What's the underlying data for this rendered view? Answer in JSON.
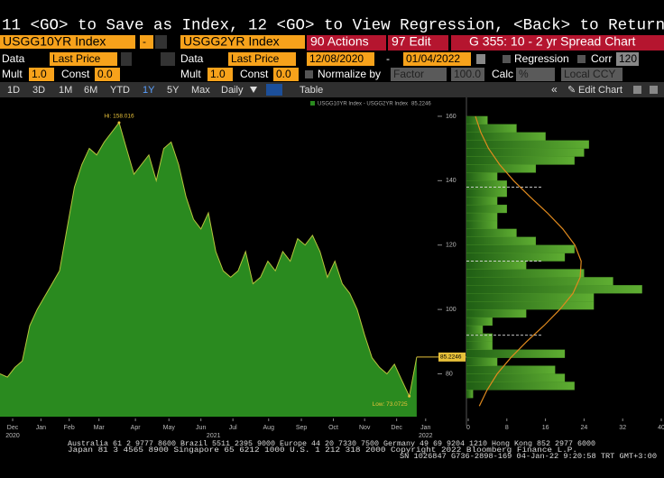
{
  "header": {
    "command": "11 <GO> to Save as Index, 12 <GO> to View Regression, <Back> to Return",
    "security1": "USGG10YR Index",
    "operator": "-",
    "security2": "USGG2YR Index",
    "actions": "90 Actions",
    "edit": "97 Edit",
    "chart_name": "G 355: 10 - 2 yr Spread Chart"
  },
  "row_data": {
    "data1": "Data",
    "price1": "Last Price",
    "data2": "Data",
    "price2": "Last Price",
    "start": "12/08/2020",
    "dash": "-",
    "end": "01/04/2022",
    "regression": "Regression",
    "corr": "Corr",
    "corr_value": "120"
  },
  "row_mult": {
    "mult1": "Mult",
    "mult1_value": "1.0",
    "const1": "Const",
    "const1_value": "0.0",
    "mult2": "Mult",
    "mult2_value": "1.0",
    "const2": "Const",
    "const2_value": "0.0",
    "normalize": "Normalize by",
    "factor": "Factor",
    "factor_value": "100.0",
    "calc": "Calc",
    "calc_value": "%",
    "ccy": "Local CCY"
  },
  "toolbar": {
    "periods": [
      "1D",
      "3D",
      "1M",
      "6M",
      "YTD",
      "1Y",
      "5Y",
      "Max"
    ],
    "active_period": 5,
    "frequency": "Daily",
    "table": "Table",
    "edit_chart": "Edit Chart"
  },
  "chart_data": [
    {
      "type": "area",
      "legend": "USGG10YR Index - USGG2YR Index",
      "color": "#2a8a1f",
      "line_color": "#b7c43c",
      "values": [
        80,
        79,
        82,
        84,
        95,
        100,
        104,
        108,
        112,
        125,
        138,
        145,
        150,
        148,
        152,
        155,
        158.016,
        150,
        142,
        145,
        148,
        140,
        150,
        152,
        145,
        135,
        128,
        125,
        130,
        118,
        112,
        110,
        112,
        118,
        108,
        110,
        115,
        112,
        118,
        115,
        122,
        120,
        123,
        118,
        110,
        115,
        108,
        105,
        100,
        92,
        85,
        82,
        80,
        83,
        78,
        73.0725,
        85.2246
      ],
      "annotations": [
        {
          "text": "Hi: 158.016",
          "index": 16
        },
        {
          "text": "Low: 73.0725",
          "index": 55
        }
      ],
      "xlim": [
        0,
        58.8
      ],
      "xticks": [
        {
          "value": 1.7,
          "label": "Dec"
        },
        {
          "value": 5.5,
          "label": "Jan"
        },
        {
          "value": 9.3,
          "label": "Feb"
        },
        {
          "value": 13.3,
          "label": "Mar"
        },
        {
          "value": 18.2,
          "label": "Apr"
        },
        {
          "value": 22.7,
          "label": "May"
        },
        {
          "value": 27,
          "label": "Jun"
        },
        {
          "value": 31.3,
          "label": "Jul"
        },
        {
          "value": 36.1,
          "label": "Aug"
        },
        {
          "value": 40.5,
          "label": "Sep"
        },
        {
          "value": 44.8,
          "label": "Oct"
        },
        {
          "value": 49,
          "label": "Nov"
        },
        {
          "value": 53.3,
          "label": "Dec"
        },
        {
          "value": 57.2,
          "label": "Jan"
        }
      ],
      "year_labels": [
        {
          "value": 1.7,
          "label": "2020"
        },
        {
          "value": 28.7,
          "label": "2021"
        },
        {
          "value": 57.2,
          "label": "2022"
        }
      ],
      "ylim": [
        66.7,
        165.3
      ],
      "yticks": [
        80,
        100,
        120,
        140,
        160
      ]
    },
    {
      "type": "histogram",
      "orientation": "horizontal",
      "color": "#4f9a2a",
      "bins": [
        72.5,
        75,
        77.5,
        80,
        82.5,
        85,
        87.5,
        90,
        92.5,
        95,
        97.5,
        100,
        102.5,
        105,
        107.5,
        110,
        112.5,
        115,
        117.5,
        120,
        122.5,
        125,
        127.5,
        130,
        132.5,
        135,
        137.5,
        140,
        142.5,
        145,
        147.5,
        150,
        152.5,
        155,
        157.5,
        160
      ],
      "counts": [
        1,
        22,
        20,
        18,
        6,
        20,
        5,
        5,
        3,
        5,
        12,
        26,
        26,
        36,
        30,
        24,
        12,
        20,
        22,
        14,
        10,
        6,
        6,
        8,
        6,
        8,
        8,
        6,
        14,
        22,
        24,
        25,
        16,
        10,
        4
      ],
      "curve": {
        "color": "#e08a1e",
        "level": [
          70,
          75,
          80,
          85,
          90,
          95,
          100,
          105,
          110,
          115,
          120,
          125,
          130,
          135,
          140,
          145,
          150,
          155,
          160
        ],
        "count": [
          2.3,
          3.9,
          6.0,
          8.8,
          12.1,
          15.7,
          19.0,
          21.7,
          23.2,
          23.4,
          22.1,
          19.6,
          16.4,
          12.8,
          9.4,
          6.5,
          4.2,
          2.6,
          1.5
        ]
      },
      "reference_lines": [
        138,
        115,
        92
      ],
      "xlim": [
        0,
        40
      ],
      "xticks": [
        0,
        8,
        16,
        24,
        32,
        40
      ],
      "ylim": [
        66.7,
        165.3
      ]
    }
  ],
  "footer": {
    "lines": [
      "Australia 61 2 9777 8600 Brazil 5511 2395 9000 Europe 44 20 7330 7500 Germany 49 69 9204 1210 Hong Kong 852 2977 6000",
      "Japan 81 3 4565 8900   Singapore 65 6212 1000   U.S. 1 212 318 2000   Copyright 2022 Bloomberg Finance L.P.",
      "SN 1026847 G736-2898-169 04-Jan-22  9:20:58 TRT  GMT+3:00"
    ]
  }
}
